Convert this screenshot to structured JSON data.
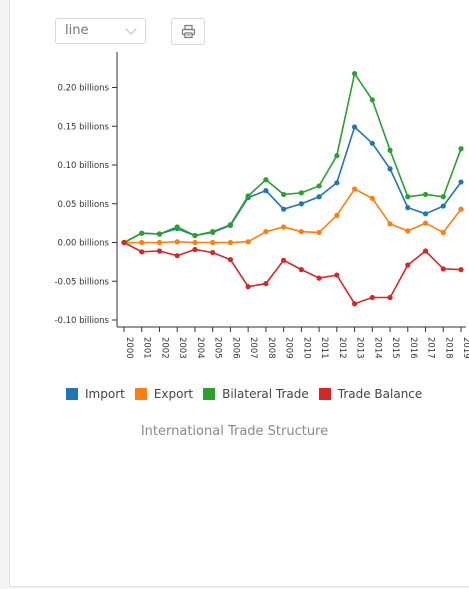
{
  "controls": {
    "chart_type_value": "line",
    "print_icon": "printer-icon"
  },
  "caption": "International Trade Structure",
  "chart_data": {
    "type": "line",
    "title": "",
    "xlabel": "",
    "ylabel": "",
    "x": [
      "2000",
      "2001",
      "2002",
      "2003",
      "2004",
      "2005",
      "2006",
      "2007",
      "2008",
      "2009",
      "2010",
      "2011",
      "2012",
      "2013",
      "2014",
      "2015",
      "2016",
      "2017",
      "2018",
      "2019"
    ],
    "ylim": [
      -0.1,
      0.25
    ],
    "yticks": [
      -0.1,
      -0.05,
      0.0,
      0.05,
      0.1,
      0.15,
      0.2
    ],
    "ytick_labels": [
      "-0.10 billions",
      "-0.05 billions",
      "0.00 billions",
      "0.05 billions",
      "0.10 billions",
      "0.15 billions",
      "0.20 billions"
    ],
    "legend_position": "bottom",
    "grid": false,
    "series": [
      {
        "name": "Import",
        "color": "#1f77b4",
        "values": [
          0.0,
          0.012,
          0.011,
          0.018,
          0.009,
          0.013,
          0.022,
          0.058,
          0.067,
          0.043,
          0.05,
          0.059,
          0.077,
          0.149,
          0.128,
          0.095,
          0.045,
          0.037,
          0.047,
          0.078
        ]
      },
      {
        "name": "Export",
        "color": "#ff7f0e",
        "values": [
          0.0,
          0.0,
          0.0,
          0.001,
          0.0,
          0.0,
          0.0,
          0.001,
          0.014,
          0.02,
          0.014,
          0.013,
          0.035,
          0.069,
          0.057,
          0.024,
          0.015,
          0.025,
          0.013,
          0.043
        ]
      },
      {
        "name": "Bilateral Trade",
        "color": "#2ca02c",
        "values": [
          0.0,
          0.012,
          0.011,
          0.02,
          0.009,
          0.014,
          0.023,
          0.06,
          0.081,
          0.062,
          0.064,
          0.073,
          0.112,
          0.218,
          0.184,
          0.119,
          0.059,
          0.062,
          0.059,
          0.121
        ]
      },
      {
        "name": "Trade Balance",
        "color": "#d62728",
        "values": [
          0.0,
          -0.012,
          -0.011,
          -0.017,
          -0.009,
          -0.013,
          -0.022,
          -0.057,
          -0.053,
          -0.023,
          -0.035,
          -0.046,
          -0.042,
          -0.079,
          -0.071,
          -0.071,
          -0.029,
          -0.011,
          -0.034,
          -0.035
        ]
      }
    ]
  }
}
